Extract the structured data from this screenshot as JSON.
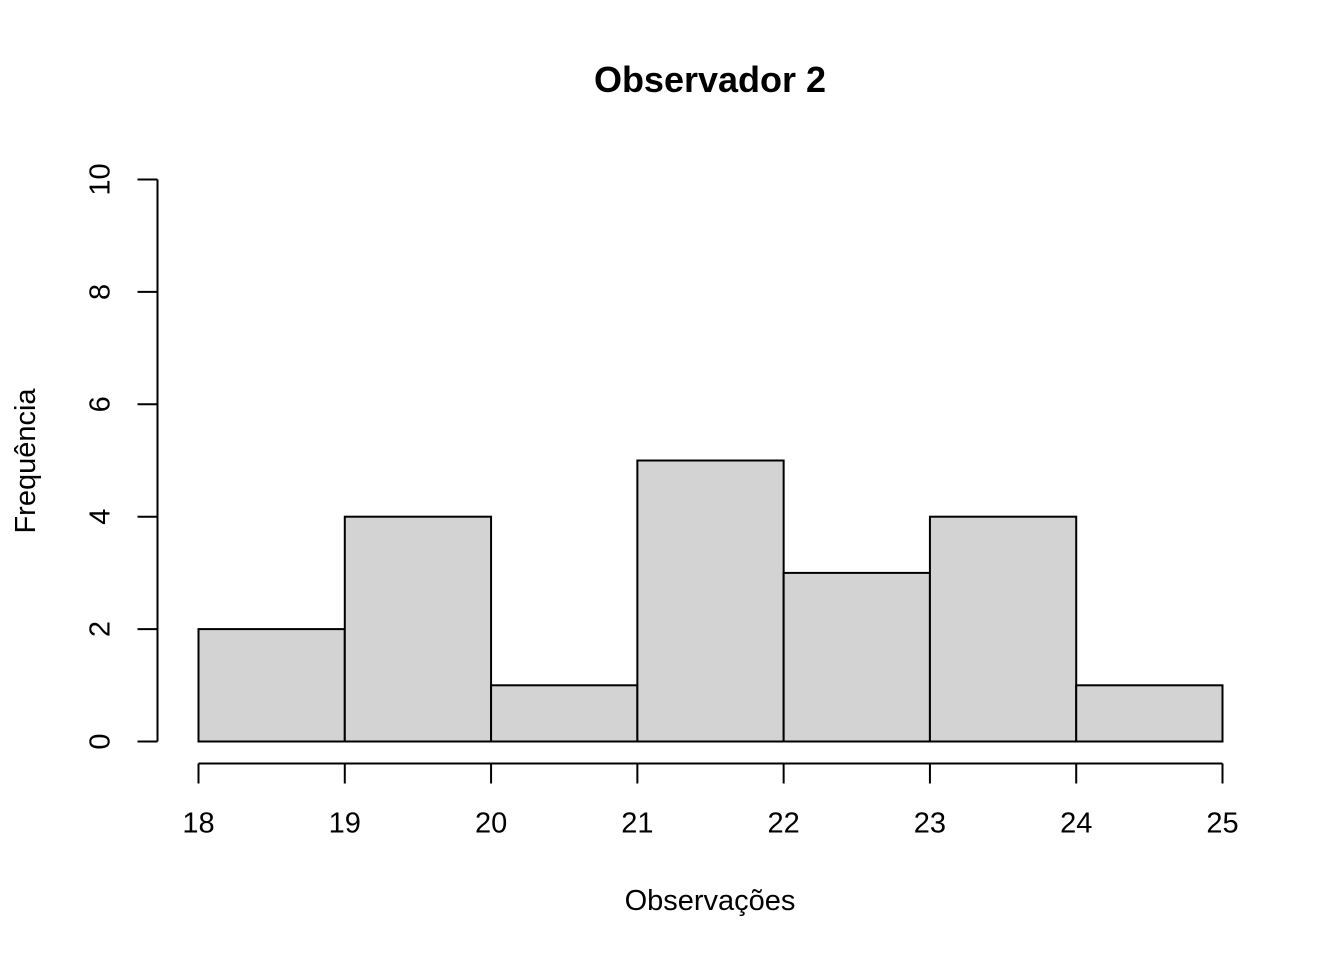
{
  "chart_data": {
    "type": "bar",
    "subtype": "histogram",
    "title": "Observador 2",
    "xlabel": "Observações",
    "ylabel": "Frequência",
    "bins": [
      {
        "start": 18,
        "end": 19,
        "count": 2
      },
      {
        "start": 19,
        "end": 20,
        "count": 4
      },
      {
        "start": 20,
        "end": 21,
        "count": 1
      },
      {
        "start": 21,
        "end": 22,
        "count": 5
      },
      {
        "start": 22,
        "end": 23,
        "count": 3
      },
      {
        "start": 23,
        "end": 24,
        "count": 4
      },
      {
        "start": 24,
        "end": 25,
        "count": 1
      }
    ],
    "xlim": [
      18,
      25
    ],
    "ylim": [
      0,
      10
    ],
    "x_ticks": [
      "18",
      "19",
      "20",
      "21",
      "22",
      "23",
      "24",
      "25"
    ],
    "y_ticks": [
      "0",
      "2",
      "4",
      "6",
      "8",
      "10"
    ],
    "grid": false,
    "bar_color": "#d3d3d3",
    "edge_color": "#000000"
  }
}
